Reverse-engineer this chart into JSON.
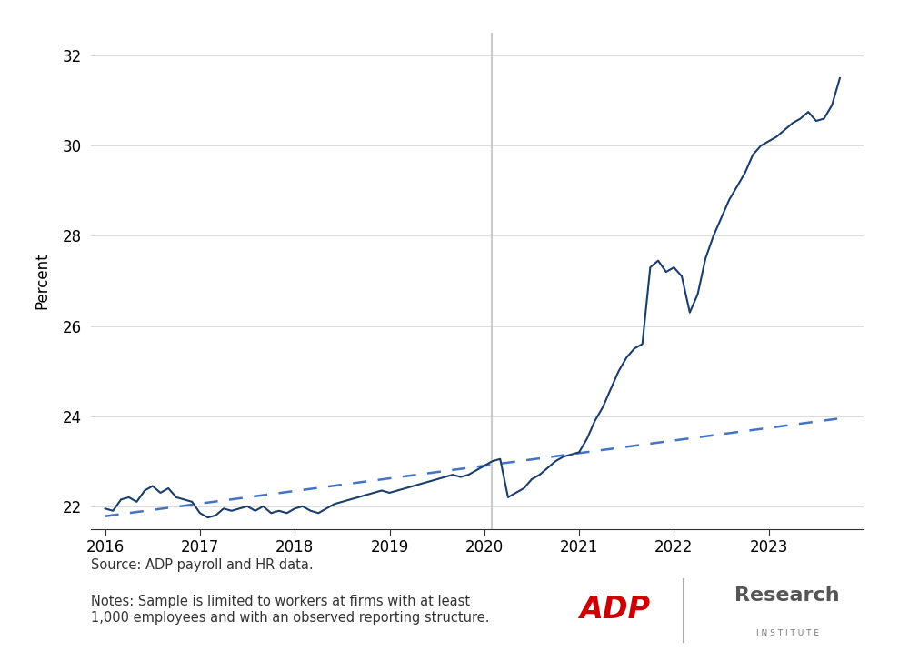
{
  "ylabel": "Percent",
  "source_text": "Source: ADP payroll and HR data.",
  "notes_text": "Notes: Sample is limited to workers at firms with at least\n1,000 employees and with an observed reporting structure.",
  "line_color": "#1a3d6b",
  "trend_color": "#4472c4",
  "vline_x": 2020.08,
  "vline_color": "#cccccc",
  "ylim": [
    21.5,
    32.5
  ],
  "xlim": [
    2015.85,
    2024.0
  ],
  "yticks": [
    22,
    24,
    26,
    28,
    30,
    32
  ],
  "xticks": [
    2016,
    2017,
    2018,
    2019,
    2020,
    2021,
    2022,
    2023
  ],
  "background_color": "#ffffff",
  "actual_x": [
    2016.0,
    2016.083,
    2016.167,
    2016.25,
    2016.333,
    2016.417,
    2016.5,
    2016.583,
    2016.667,
    2016.75,
    2016.833,
    2016.917,
    2017.0,
    2017.083,
    2017.167,
    2017.25,
    2017.333,
    2017.417,
    2017.5,
    2017.583,
    2017.667,
    2017.75,
    2017.833,
    2017.917,
    2018.0,
    2018.083,
    2018.167,
    2018.25,
    2018.333,
    2018.417,
    2018.5,
    2018.583,
    2018.667,
    2018.75,
    2018.833,
    2018.917,
    2019.0,
    2019.083,
    2019.167,
    2019.25,
    2019.333,
    2019.417,
    2019.5,
    2019.583,
    2019.667,
    2019.75,
    2019.833,
    2019.917,
    2020.0,
    2020.083,
    2020.167,
    2020.25,
    2020.333,
    2020.417,
    2020.5,
    2020.583,
    2020.667,
    2020.75,
    2020.833,
    2020.917,
    2021.0,
    2021.083,
    2021.167,
    2021.25,
    2021.333,
    2021.417,
    2021.5,
    2021.583,
    2021.667,
    2021.75,
    2021.833,
    2021.917,
    2022.0,
    2022.083,
    2022.167,
    2022.25,
    2022.333,
    2022.417,
    2022.5,
    2022.583,
    2022.667,
    2022.75,
    2022.833,
    2022.917,
    2023.0,
    2023.083,
    2023.167,
    2023.25,
    2023.333,
    2023.417,
    2023.5,
    2023.583,
    2023.667,
    2023.75
  ],
  "actual_y": [
    21.95,
    21.9,
    22.15,
    22.2,
    22.1,
    22.35,
    22.45,
    22.3,
    22.4,
    22.2,
    22.15,
    22.1,
    21.85,
    21.75,
    21.8,
    21.95,
    21.9,
    21.95,
    22.0,
    21.9,
    22.0,
    21.85,
    21.9,
    21.85,
    21.95,
    22.0,
    21.9,
    21.85,
    21.95,
    22.05,
    22.1,
    22.15,
    22.2,
    22.25,
    22.3,
    22.35,
    22.3,
    22.35,
    22.4,
    22.45,
    22.5,
    22.55,
    22.6,
    22.65,
    22.7,
    22.65,
    22.7,
    22.8,
    22.9,
    23.0,
    23.05,
    22.2,
    22.3,
    22.4,
    22.6,
    22.7,
    22.85,
    23.0,
    23.1,
    23.15,
    23.2,
    23.5,
    23.9,
    24.2,
    24.6,
    25.0,
    25.3,
    25.5,
    25.6,
    27.3,
    27.45,
    27.2,
    27.3,
    27.1,
    26.3,
    26.7,
    27.5,
    28.0,
    28.4,
    28.8,
    29.1,
    29.4,
    29.8,
    30.0,
    30.1,
    30.2,
    30.35,
    30.5,
    30.6,
    30.75,
    30.55,
    30.6,
    30.9,
    31.5
  ],
  "trend_x": [
    2016.0,
    2023.75
  ],
  "trend_y": [
    21.78,
    23.95
  ]
}
